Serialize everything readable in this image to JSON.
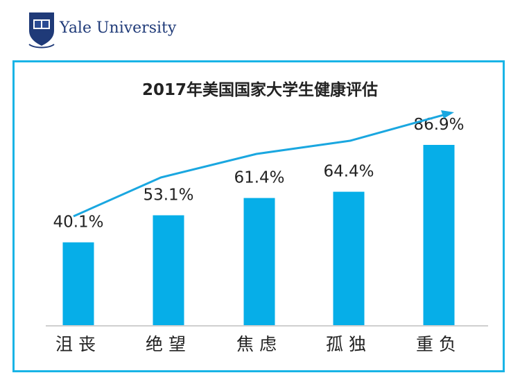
{
  "logo": {
    "text": "Yale University",
    "emblem": "yale-shield-icon"
  },
  "colors": {
    "frame": "#19b4e6",
    "bar": "#06aee8",
    "trend_line": "#1aa7e0",
    "title": "#222222",
    "logo_text": "#1f3a78"
  },
  "chart_data": {
    "type": "bar",
    "title": "2017年美国国家大学生健康评估",
    "categories": [
      "沮丧",
      "绝望",
      "焦虑",
      "孤独",
      "重负"
    ],
    "values": [
      40.1,
      53.1,
      61.4,
      64.4,
      86.9
    ],
    "data_labels": [
      "40.1%",
      "53.1%",
      "61.4%",
      "64.4%",
      "86.9%"
    ],
    "unit": "%",
    "ylim": [
      0,
      100
    ],
    "grid": false,
    "legend": "none",
    "trend_line": true
  }
}
